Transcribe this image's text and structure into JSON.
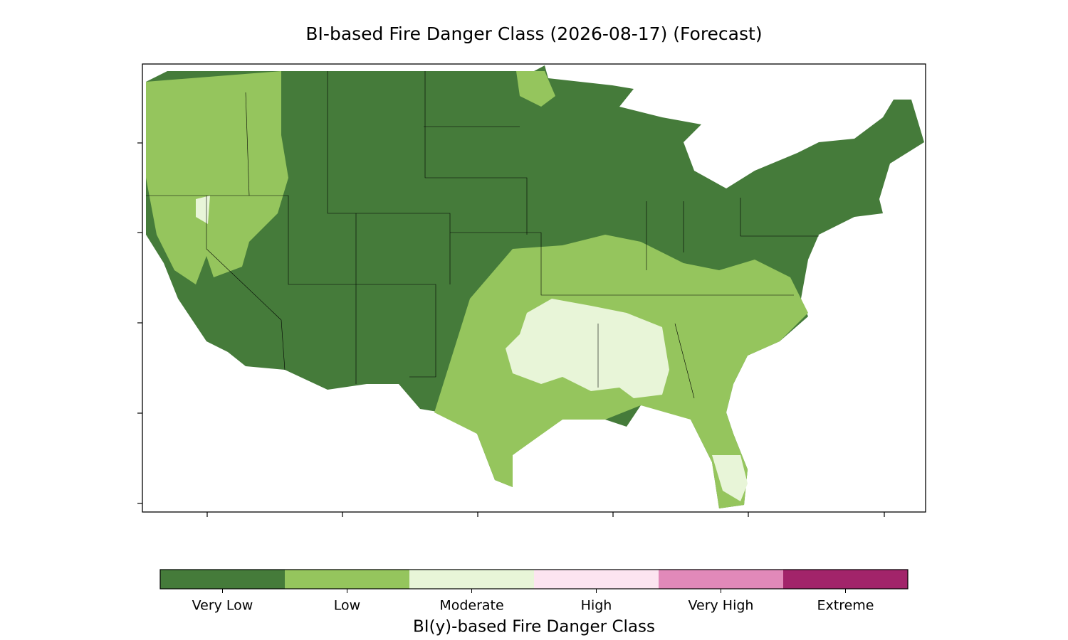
{
  "title": "BI-based Fire Danger Class (2026-08-17) (Forecast)",
  "colorbar": {
    "label": "BI(y)-based Fire Danger Class",
    "classes": [
      {
        "label": "Very Low",
        "color": "#457b3a"
      },
      {
        "label": "Low",
        "color": "#95c55d"
      },
      {
        "label": "Moderate",
        "color": "#e8f5d8"
      },
      {
        "label": "High",
        "color": "#fce4f0"
      },
      {
        "label": "Very High",
        "color": "#e189b9"
      },
      {
        "label": "Extreme",
        "color": "#a2246a"
      }
    ]
  }
}
